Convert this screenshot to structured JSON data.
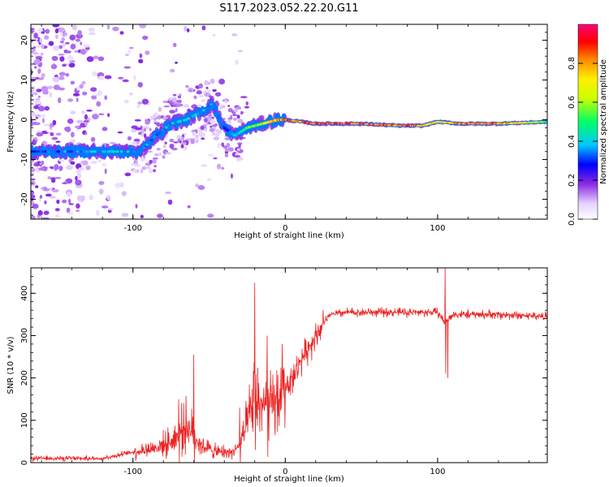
{
  "title": "S117.2023.052.22.20.G11",
  "chart_data": [
    {
      "type": "heatmap",
      "xlabel": "Height of straight line (km)",
      "ylabel": "Frequency (Hz)",
      "xlim": [
        -167,
        172
      ],
      "ylim": [
        -25,
        24
      ],
      "x_ticks": [
        -100,
        0,
        100
      ],
      "x_tick_labels": [
        "-100",
        "0",
        "100"
      ],
      "y_ticks": [
        -20,
        -10,
        0,
        10,
        20
      ],
      "y_tick_labels": [
        "-20",
        "-10",
        "0",
        "10",
        "20"
      ],
      "colorbar": {
        "label": "Normalized spectral amplitude",
        "range": [
          0,
          1
        ],
        "ticks": [
          0,
          0.2,
          0.4,
          0.6,
          0.8
        ],
        "tick_labels": [
          "0.0",
          "0.2",
          "0.4",
          "0.6",
          "0.8"
        ],
        "colormap": "rainbow (white-purple-blue-cyan-green-yellow-orange-red-magenta)"
      },
      "ridge": {
        "x": [
          -150,
          -130,
          -110,
          -95,
          -85,
          -75,
          -65,
          -55,
          -48,
          -40,
          -33,
          -25,
          -15,
          -5,
          0,
          20,
          50,
          75,
          90,
          100,
          115,
          140,
          172
        ],
        "frequency": [
          -8,
          -8,
          -8,
          -8,
          -4,
          -1,
          0,
          2,
          4,
          -2,
          -4,
          -2,
          -1,
          0,
          0,
          -1,
          -1,
          -1.5,
          -1.5,
          -0.5,
          -1,
          -1,
          -0.5
        ],
        "amplitude": [
          0.35,
          0.4,
          0.45,
          0.4,
          0.35,
          0.4,
          0.45,
          0.4,
          0.35,
          0.3,
          0.4,
          0.55,
          0.65,
          0.85,
          0.9,
          0.95,
          0.95,
          0.9,
          0.85,
          0.7,
          0.9,
          0.9,
          0.55
        ]
      },
      "colors": {
        "scatter": "#8a2be2",
        "scatter_light": "#cdb5f0"
      }
    },
    {
      "type": "line",
      "xlabel": "Height of straight line (km)",
      "ylabel": "SNR (10 * v/v)",
      "xlim": [
        -167,
        172
      ],
      "ylim": [
        0,
        460
      ],
      "x_ticks": [
        -100,
        0,
        100
      ],
      "x_tick_labels": [
        "-100",
        "0",
        "100"
      ],
      "y_ticks": [
        0,
        100,
        200,
        300,
        400
      ],
      "y_tick_labels": [
        "0",
        "100",
        "200",
        "300",
        "400"
      ],
      "series": [
        {
          "color": "#ee2222",
          "trend_x": [
            -167,
            -140,
            -120,
            -100,
            -85,
            -75,
            -65,
            -55,
            -45,
            -35,
            -30,
            -25,
            -20,
            -15,
            -10,
            -5,
            0,
            5,
            10,
            15,
            20,
            25,
            30,
            40,
            60,
            80,
            100,
            105,
            110,
            140,
            172
          ],
          "trend_y": [
            10,
            10,
            10,
            25,
            35,
            50,
            90,
            40,
            25,
            25,
            40,
            90,
            150,
            140,
            130,
            145,
            180,
            200,
            240,
            270,
            300,
            330,
            350,
            355,
            355,
            355,
            355,
            330,
            350,
            350,
            345
          ],
          "spikes_x": [
            -70,
            -60,
            -30,
            -20,
            -12,
            105
          ],
          "spikes_y": [
            150,
            255,
            130,
            425,
            300,
            460
          ]
        }
      ]
    }
  ]
}
